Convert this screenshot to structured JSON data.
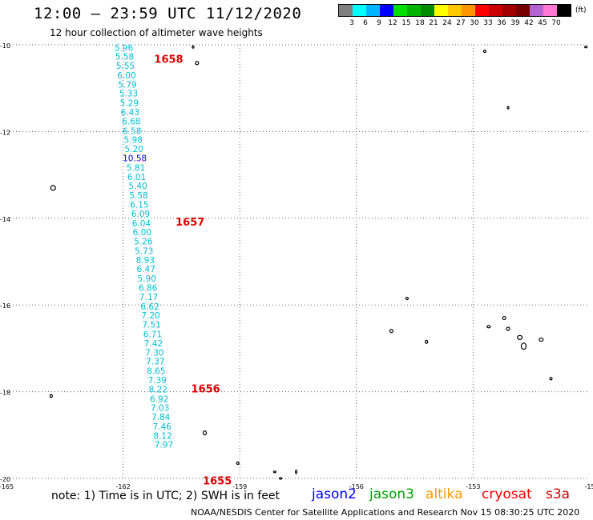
{
  "title": "12:00 – 23:59 UTC 11/12/2020",
  "subtitle": "12 hour collection of altimeter wave heights",
  "legend": {
    "colors": [
      "#808080",
      "#00ffff",
      "#00b4ff",
      "#0000ff",
      "#00e000",
      "#00b400",
      "#008c00",
      "#ffff00",
      "#ffc800",
      "#ff9600",
      "#ff0000",
      "#c80000",
      "#a00000",
      "#780000",
      "#b464d2",
      "#ff78d2",
      "#000000"
    ],
    "labels": [
      "3",
      "6",
      "9",
      "12",
      "15",
      "18",
      "21",
      "24",
      "27",
      "30",
      "33",
      "36",
      "39",
      "42",
      "45",
      "70"
    ],
    "unit": "(ft)"
  },
  "map": {
    "lon_range": [
      -165,
      -150
    ],
    "lat_range": [
      -20,
      -10
    ],
    "lon_ticks": [
      "-165",
      "-162",
      "-159",
      "-156",
      "-153",
      "-15"
    ],
    "lat_ticks": [
      "-10",
      "-12",
      "-14",
      "-16",
      "-18",
      "-20"
    ],
    "track_color": "#00bcd4",
    "anomaly_color": "#0000cc",
    "time_label_color": "#dd0000",
    "track": [
      {
        "lon": -161.98,
        "lat": -10.06,
        "v": "5.96"
      },
      {
        "lon": -161.96,
        "lat": -10.27,
        "v": "5.58"
      },
      {
        "lon": -161.94,
        "lat": -10.48,
        "v": "5.55"
      },
      {
        "lon": -161.91,
        "lat": -10.7,
        "v": "6.00"
      },
      {
        "lon": -161.89,
        "lat": -10.91,
        "v": "5.79"
      },
      {
        "lon": -161.86,
        "lat": -11.12,
        "v": "5.33"
      },
      {
        "lon": -161.84,
        "lat": -11.34,
        "v": "5.29"
      },
      {
        "lon": -161.82,
        "lat": -11.55,
        "v": "6.43"
      },
      {
        "lon": -161.79,
        "lat": -11.76,
        "v": "6.68"
      },
      {
        "lon": -161.77,
        "lat": -11.98,
        "v": "6.58"
      },
      {
        "lon": -161.74,
        "lat": -12.19,
        "v": "5.98"
      },
      {
        "lon": -161.72,
        "lat": -12.4,
        "v": "5.20"
      },
      {
        "lon": -161.7,
        "lat": -12.61,
        "v": "10.58",
        "anomaly": true
      },
      {
        "lon": -161.67,
        "lat": -12.83,
        "v": "5.81"
      },
      {
        "lon": -161.65,
        "lat": -13.04,
        "v": "6.01"
      },
      {
        "lon": -161.62,
        "lat": -13.25,
        "v": "5.40"
      },
      {
        "lon": -161.6,
        "lat": -13.47,
        "v": "5.58"
      },
      {
        "lon": -161.58,
        "lat": -13.68,
        "v": "6.15"
      },
      {
        "lon": -161.55,
        "lat": -13.89,
        "v": "6.09"
      },
      {
        "lon": -161.53,
        "lat": -14.11,
        "v": "6.04"
      },
      {
        "lon": -161.51,
        "lat": -14.32,
        "v": "6.00"
      },
      {
        "lon": -161.48,
        "lat": -14.53,
        "v": "5.26"
      },
      {
        "lon": -161.46,
        "lat": -14.75,
        "v": "5.73"
      },
      {
        "lon": -161.43,
        "lat": -14.96,
        "v": "8.93"
      },
      {
        "lon": -161.41,
        "lat": -15.17,
        "v": "6.47"
      },
      {
        "lon": -161.39,
        "lat": -15.39,
        "v": "5.90"
      },
      {
        "lon": -161.36,
        "lat": -15.6,
        "v": "6.86"
      },
      {
        "lon": -161.34,
        "lat": -15.81,
        "v": "7.17"
      },
      {
        "lon": -161.31,
        "lat": -16.03,
        "v": "6.62"
      },
      {
        "lon": -161.29,
        "lat": -16.24,
        "v": "7.20"
      },
      {
        "lon": -161.27,
        "lat": -16.45,
        "v": "7.51"
      },
      {
        "lon": -161.24,
        "lat": -16.67,
        "v": "6.71"
      },
      {
        "lon": -161.22,
        "lat": -16.88,
        "v": "7.42"
      },
      {
        "lon": -161.19,
        "lat": -17.09,
        "v": "7.30"
      },
      {
        "lon": -161.17,
        "lat": -17.3,
        "v": "7.37"
      },
      {
        "lon": -161.15,
        "lat": -17.52,
        "v": "8.65"
      },
      {
        "lon": -161.12,
        "lat": -17.73,
        "v": "7.39"
      },
      {
        "lon": -161.1,
        "lat": -17.94,
        "v": "8.22"
      },
      {
        "lon": -161.07,
        "lat": -18.16,
        "v": "6.92"
      },
      {
        "lon": -161.05,
        "lat": -18.37,
        "v": "7.03"
      },
      {
        "lon": -161.03,
        "lat": -18.58,
        "v": "7.84"
      },
      {
        "lon": -161.0,
        "lat": -18.8,
        "v": "7.46"
      },
      {
        "lon": -160.98,
        "lat": -19.01,
        "v": "8.12"
      },
      {
        "lon": -160.95,
        "lat": -19.22,
        "v": "7.97"
      }
    ],
    "time_labels": [
      {
        "text": "1658",
        "lon": -161.2,
        "lat": -10.32
      },
      {
        "text": "1657",
        "lon": -160.65,
        "lat": -14.08
      },
      {
        "text": "1656",
        "lon": -160.25,
        "lat": -17.92
      },
      {
        "text": "1655",
        "lon": -159.95,
        "lat": -20.05
      }
    ],
    "islands": [
      {
        "lon": -160.2,
        "lat": -10.05,
        "w": 2,
        "h": 3
      },
      {
        "lon": -160.1,
        "lat": -10.42,
        "w": 4,
        "h": 4
      },
      {
        "lon": -150.1,
        "lat": -10.05,
        "w": 3,
        "h": 2
      },
      {
        "lon": -152.7,
        "lat": -10.15,
        "w": 3,
        "h": 3
      },
      {
        "lon": -152.1,
        "lat": -11.45,
        "w": 2,
        "h": 3
      },
      {
        "lon": -163.8,
        "lat": -13.3,
        "w": 6,
        "h": 6
      },
      {
        "lon": -154.7,
        "lat": -15.85,
        "w": 3,
        "h": 3
      },
      {
        "lon": -155.1,
        "lat": -16.6,
        "w": 4,
        "h": 4
      },
      {
        "lon": -154.2,
        "lat": -16.85,
        "w": 3,
        "h": 4
      },
      {
        "lon": -152.2,
        "lat": -16.3,
        "w": 4,
        "h": 4
      },
      {
        "lon": -152.6,
        "lat": -16.5,
        "w": 4,
        "h": 3
      },
      {
        "lon": -152.1,
        "lat": -16.55,
        "w": 4,
        "h": 4
      },
      {
        "lon": -151.8,
        "lat": -16.75,
        "w": 6,
        "h": 5
      },
      {
        "lon": -151.7,
        "lat": -16.95,
        "w": 6,
        "h": 8
      },
      {
        "lon": -151.25,
        "lat": -16.8,
        "w": 5,
        "h": 4
      },
      {
        "lon": -151.0,
        "lat": -17.7,
        "w": 3,
        "h": 3
      },
      {
        "lon": -163.85,
        "lat": -18.1,
        "w": 3,
        "h": 4
      },
      {
        "lon": -159.9,
        "lat": -18.95,
        "w": 4,
        "h": 5
      },
      {
        "lon": -159.05,
        "lat": -19.65,
        "w": 3,
        "h": 3
      },
      {
        "lon": -158.1,
        "lat": -19.85,
        "w": 3,
        "h": 2
      },
      {
        "lon": -157.55,
        "lat": -19.85,
        "w": 2,
        "h": 4
      },
      {
        "lon": -157.95,
        "lat": -20.0,
        "w": 3,
        "h": 2
      }
    ]
  },
  "footer": {
    "note": "note: 1) Time is in UTC; 2) SWH is in feet",
    "satellites": [
      {
        "name": "jason2",
        "color": "#0000ff"
      },
      {
        "name": "jason3",
        "color": "#00a000"
      },
      {
        "name": "altika",
        "color": "#ff9900"
      },
      {
        "name": "cryosat",
        "color": "#ff0000"
      },
      {
        "name": "s3a",
        "color": "#cc0000"
      }
    ],
    "credit": "NOAA/NESDIS Center for Satellite Applications and Research   Nov 15 08:30:25 UTC 2020"
  }
}
